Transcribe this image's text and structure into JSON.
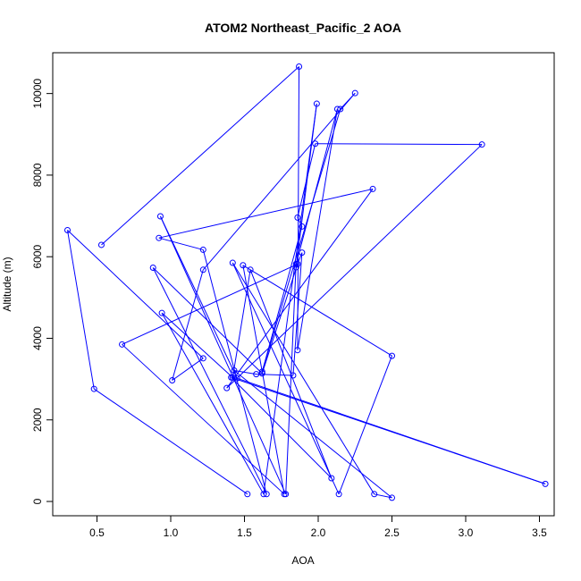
{
  "chart_data": {
    "type": "line",
    "title": "ATOM2 Northeast_Pacific_2 AOA",
    "xlabel": "AOA",
    "ylabel": "Altitude (m)",
    "xlim": [
      0.2,
      3.6
    ],
    "ylim": [
      -350,
      11000
    ],
    "xticks": [
      0.5,
      1.0,
      1.5,
      2.0,
      2.5,
      3.0,
      3.5
    ],
    "xtick_labels": [
      "0.5",
      "1.0",
      "1.5",
      "2.0",
      "2.5",
      "3.0",
      "3.5"
    ],
    "yticks": [
      0,
      2000,
      4000,
      6000,
      8000,
      10000
    ],
    "ytick_labels": [
      "0",
      "2000",
      "4000",
      "6000",
      "8000",
      "10000"
    ],
    "grid": false,
    "series": [
      {
        "color": "#0000ff",
        "x": [
          1.52,
          0.48,
          0.3,
          1.22,
          1.01,
          1.22,
          2.25,
          2.15,
          1.62,
          1.89,
          1.86,
          1.98,
          3.11,
          1.38,
          2.37,
          0.92,
          1.22,
          1.65,
          0.88,
          1.62,
          1.86,
          0.67,
          1.77,
          1.49,
          2.5,
          2.14,
          1.42,
          2.38,
          2.5,
          1.43,
          1.58,
          1.83,
          1.89,
          1.85,
          1.99,
          1.63,
          0.94,
          1.42,
          1.54,
          2.09,
          1.41,
          3.54,
          1.45,
          0.93,
          1.78,
          1.85,
          2.13,
          1.86,
          1.87,
          0.53
        ],
        "y": [
          180,
          2760,
          6650,
          3510,
          2970,
          5680,
          10010,
          9620,
          3180,
          6740,
          6960,
          8770,
          8750,
          2780,
          7660,
          6460,
          6170,
          180,
          5730,
          3140,
          5820,
          3850,
          180,
          5790,
          3570,
          180,
          5850,
          180,
          90,
          3210,
          3120,
          3090,
          6100,
          5740,
          9750,
          180,
          4620,
          3040,
          5680,
          570,
          3040,
          430,
          3020,
          6990,
          180,
          5820,
          9620,
          3710,
          10660,
          6290
        ]
      }
    ]
  }
}
